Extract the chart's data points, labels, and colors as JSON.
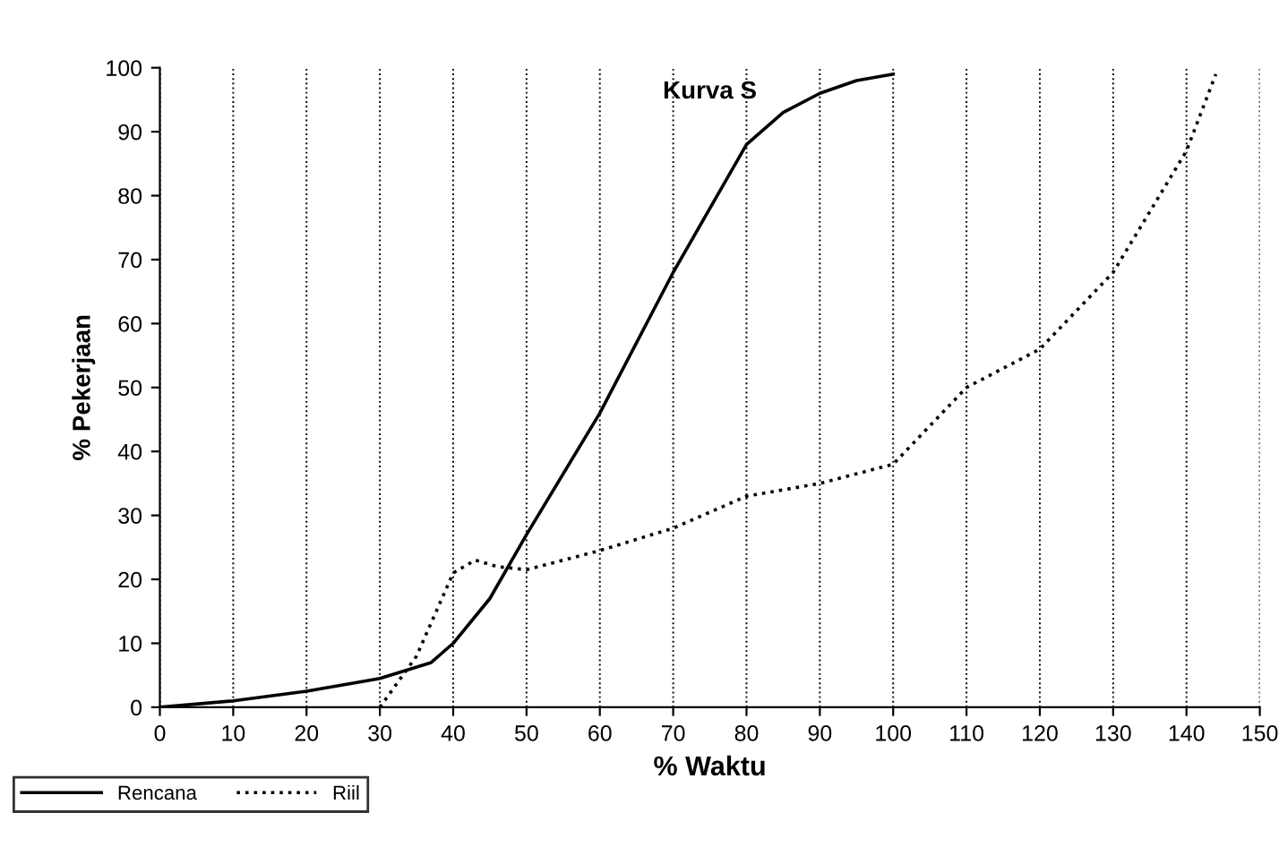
{
  "chart_data": {
    "type": "line",
    "title": "Kurva S",
    "xlabel": "% Waktu",
    "ylabel": "% Pekerjaan",
    "xlim": [
      0,
      150
    ],
    "xticks": [
      0,
      10,
      20,
      30,
      40,
      50,
      60,
      70,
      80,
      90,
      100,
      110,
      120,
      130,
      140,
      150
    ],
    "ylim": [
      0,
      100
    ],
    "yticks": [
      0,
      10,
      20,
      30,
      40,
      50,
      60,
      70,
      80,
      90,
      100
    ],
    "grid": "x",
    "legend": "bottom left",
    "marker": "none",
    "series": [
      {
        "name": "Rencana",
        "color": "#000000",
        "line_style": "solid",
        "x": [
          0,
          10,
          20,
          30,
          37,
          40,
          45,
          50,
          60,
          70,
          80,
          85,
          90,
          95,
          100
        ],
        "values": [
          0,
          1,
          2.5,
          4.5,
          7,
          10,
          17,
          27,
          46,
          68,
          88,
          93,
          96,
          98,
          99
        ]
      },
      {
        "name": "Riil",
        "color": "#000000",
        "line_style": "dotted",
        "x": [
          30,
          35,
          40,
          43,
          46,
          50,
          60,
          70,
          80,
          90,
          100,
          110,
          120,
          130,
          140,
          144
        ],
        "values": [
          0,
          8,
          21,
          23,
          22,
          21.5,
          24.5,
          28,
          33,
          35,
          38,
          50,
          56,
          68,
          87,
          99
        ]
      }
    ]
  }
}
